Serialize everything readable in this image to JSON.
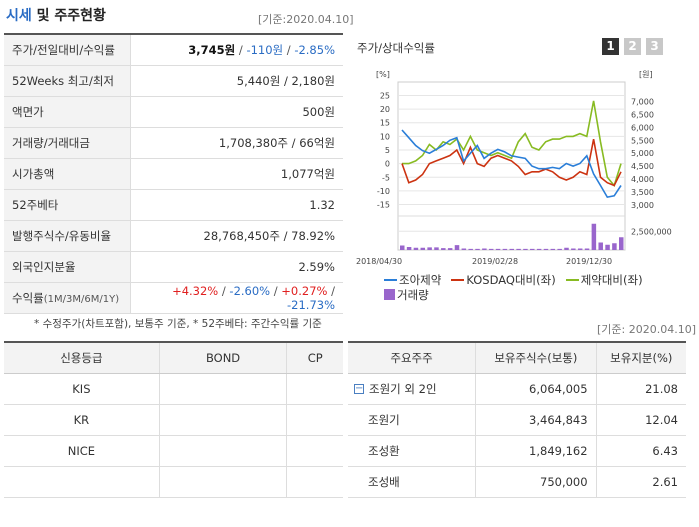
{
  "header": {
    "title_accent": "시세",
    "title_rest": " 및 주주현황",
    "base_date": "[기준:2020.04.10]"
  },
  "price_table": {
    "rows": [
      {
        "label": "주가/전일대비/수익률"
      },
      {
        "label": "52Weeks 최고/최저",
        "value": "5,440원 / 2,180원"
      },
      {
        "label": "액면가",
        "value": "500원"
      },
      {
        "label": "거래량/거래대금",
        "value": "1,708,380주 / 66억원"
      },
      {
        "label": "시가총액",
        "value": "1,077억원"
      },
      {
        "label": "52주베타",
        "value": "1.32"
      },
      {
        "label": "발행주식수/유동비율",
        "value": "28,768,450주 / 78.92%"
      },
      {
        "label": "외국인지분율",
        "value": "2.59%"
      },
      {
        "label": "수익률",
        "sub": "(1M/3M/6M/1Y)"
      }
    ],
    "price": "3,745원",
    "change": "-110원",
    "change_pct": "-2.85%",
    "returns": [
      "+4.32%",
      "-2.60%",
      "+0.27%",
      "-21.73%"
    ],
    "note": "* 수정주가(차트포함), 보통주 기준, * 52주베타: 주간수익률 기준"
  },
  "chart": {
    "title": "주가/상대수익률",
    "tabs": [
      "1",
      "2",
      "3"
    ],
    "active_tab": 0,
    "legend": {
      "s1": "조아제약",
      "s2": "KOSDAQ대비(좌)",
      "s3": "제약대비(좌)",
      "s4": "거래량"
    },
    "colors": {
      "s1": "#2a7ed8",
      "s2": "#cc3311",
      "s3": "#88bb22",
      "s4": "#9966cc"
    }
  },
  "chart_data": {
    "type": "line",
    "x_labels": [
      "2018/04/30",
      "2019/02/28",
      "2019/12/30"
    ],
    "left_axis": {
      "unit": "[%]",
      "ticks": [
        25,
        20,
        15,
        10,
        5,
        0,
        -5,
        -10,
        -15
      ],
      "ylim": [
        -17,
        27
      ]
    },
    "right_axis": {
      "unit": "[원]",
      "ticks": [
        "7,000",
        "6,500",
        "6,000",
        "5,500",
        "5,000",
        "4,500",
        "4,000",
        "3,500",
        "3,000"
      ],
      "ylim": [
        2800,
        7450
      ]
    },
    "volume_axis": {
      "ticks": [
        "2,500,000"
      ],
      "ylim": [
        0,
        4000000
      ]
    },
    "series": [
      {
        "name": "조아제약",
        "axis": "right",
        "values": [
          5900,
          5600,
          5300,
          5100,
          5000,
          5150,
          5300,
          5500,
          5600,
          4700,
          5000,
          5300,
          4800,
          5000,
          5150,
          5050,
          4900,
          4850,
          4800,
          4500,
          4400,
          4400,
          4450,
          4400,
          4600,
          4500,
          4600,
          4900,
          4200,
          3750,
          3300,
          3350,
          3750
        ]
      },
      {
        "name": "KOSDAQ대비(좌)",
        "axis": "left",
        "values": [
          0,
          -7,
          -6,
          -4,
          0,
          1,
          2,
          3,
          5,
          0,
          6,
          0,
          -1,
          2,
          3,
          2,
          1,
          -1,
          -4,
          -3,
          -3,
          -2,
          -3,
          -5,
          -6,
          -5,
          -3,
          -4,
          9,
          -5,
          -7,
          -8,
          -3
        ]
      },
      {
        "name": "제약대비(좌)",
        "axis": "left",
        "values": [
          0,
          0,
          1,
          3,
          7,
          5,
          8,
          7,
          9,
          5,
          10,
          5,
          4,
          3,
          4,
          3,
          2,
          8,
          11,
          6,
          5,
          8,
          9,
          9,
          10,
          10,
          11,
          10,
          23,
          8,
          -5,
          -8,
          0
        ]
      },
      {
        "name": "거래량",
        "axis": "volume",
        "type": "bar",
        "values": [
          600000,
          400000,
          300000,
          300000,
          350000,
          350000,
          250000,
          250000,
          650000,
          200000,
          150000,
          150000,
          200000,
          150000,
          150000,
          150000,
          150000,
          150000,
          150000,
          150000,
          150000,
          150000,
          150000,
          150000,
          300000,
          200000,
          200000,
          200000,
          3500000,
          1000000,
          700000,
          900000,
          1700000
        ]
      }
    ]
  },
  "credit_table": {
    "headers": [
      "신용등급",
      "BOND",
      "CP"
    ],
    "rows": [
      [
        "KIS",
        "",
        ""
      ],
      [
        "KR",
        "",
        ""
      ],
      [
        "NICE",
        "",
        ""
      ],
      [
        "",
        "",
        ""
      ]
    ]
  },
  "holder_table": {
    "base_date": "[기준: 2020.04.10]",
    "headers": [
      "주요주주",
      "보유주식수(보통)",
      "보유지분(%)"
    ],
    "rows": [
      {
        "name": "조원기 외 2인",
        "shares": "6,064,005",
        "pct": "21.08",
        "group": true
      },
      {
        "name": "조원기",
        "shares": "3,464,843",
        "pct": "12.04"
      },
      {
        "name": "조성환",
        "shares": "1,849,162",
        "pct": "6.43"
      },
      {
        "name": "조성배",
        "shares": "750,000",
        "pct": "2.61"
      }
    ]
  }
}
